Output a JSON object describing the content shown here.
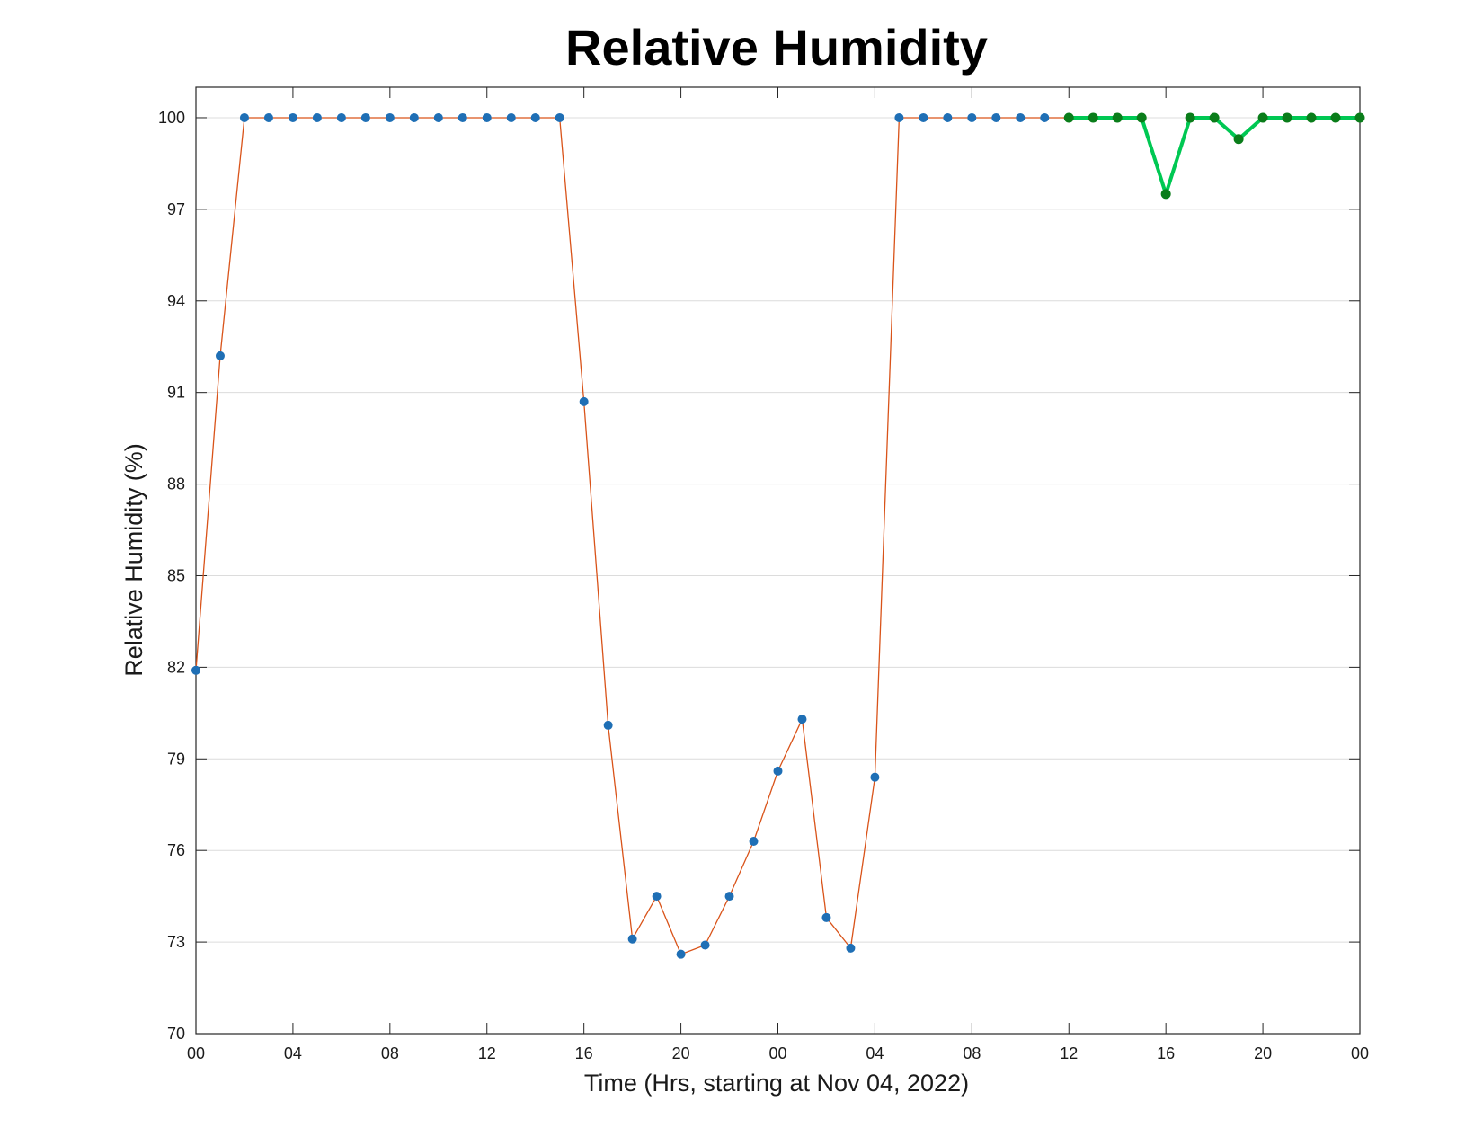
{
  "chart_data": {
    "type": "line",
    "title": "Relative Humidity",
    "xlabel": "Time (Hrs, starting at Nov 04, 2022)",
    "ylabel": "Relative Humidity (%)",
    "x_unit": "hours",
    "xlim": [
      0,
      48
    ],
    "ylim": [
      70,
      101
    ],
    "y_ticks": [
      70,
      73,
      76,
      79,
      82,
      85,
      88,
      91,
      94,
      97,
      100
    ],
    "x_ticks": [
      0,
      4,
      8,
      12,
      16,
      20,
      24,
      28,
      32,
      36,
      40,
      44,
      48
    ],
    "x_tick_labels": [
      "00",
      "04",
      "08",
      "12",
      "16",
      "20",
      "00",
      "04",
      "08",
      "12",
      "16",
      "20",
      "00"
    ],
    "grid": "horizontal",
    "series": [
      {
        "line_color": "#d95319",
        "marker_color": "#1f6fb5",
        "x": [
          0,
          1,
          2,
          3,
          4,
          5,
          6,
          7,
          8,
          9,
          10,
          11,
          12,
          13,
          14,
          15,
          16,
          17,
          18,
          19,
          20,
          21,
          22,
          23,
          24,
          25,
          26,
          27,
          28,
          29,
          30,
          31,
          32,
          33,
          34,
          35,
          36
        ],
        "values": [
          81.9,
          92.2,
          100,
          100,
          100,
          100,
          100,
          100,
          100,
          100,
          100,
          100,
          100,
          100,
          100,
          100,
          90.7,
          80.1,
          73.1,
          74.5,
          72.6,
          72.9,
          74.5,
          76.3,
          78.6,
          80.3,
          73.8,
          72.8,
          78.4,
          100,
          100,
          100,
          100,
          100,
          100,
          100,
          100
        ]
      },
      {
        "line_color": "#00c853",
        "marker_color": "#0a7d1a",
        "x": [
          36,
          37,
          38,
          39,
          40,
          41,
          42,
          43,
          44,
          45,
          46,
          47,
          48
        ],
        "values": [
          100,
          100,
          100,
          100,
          97.5,
          100,
          100,
          99.3,
          100,
          100,
          100,
          100,
          100
        ]
      }
    ]
  }
}
